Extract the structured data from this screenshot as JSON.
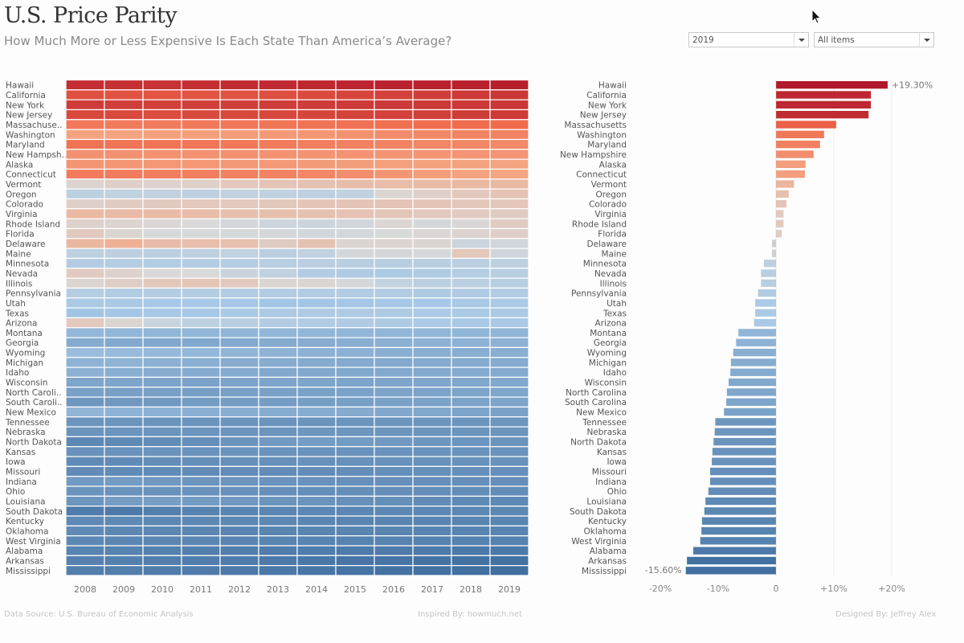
{
  "header": {
    "title": "U.S. Price Parity",
    "subtitle": "How Much More or Less Expensive Is Each State Than America’s Average?"
  },
  "filters": {
    "year": {
      "selected": "2019",
      "icon": "chevron-down-icon"
    },
    "category": {
      "selected": "All items",
      "icon": "chevron-down-icon"
    }
  },
  "footer": {
    "source": "Data Source: U.S. Bureau of Economic Analysis",
    "inspired": "Inspired By: howmuch.net",
    "designed": "Designed By: Jeffrey Alex"
  },
  "colors": {
    "high": "#b2182b",
    "mid_high": "#f4a582",
    "neutral": "#d9d9d9",
    "mid_low": "#a6c8e6",
    "low": "#3d6c9e"
  },
  "chart_data": [
    {
      "type": "heatmap",
      "title": "Regional price parity by state and year",
      "xlabel": "",
      "ylabel": "",
      "x": [
        "2008",
        "2009",
        "2010",
        "2011",
        "2012",
        "2013",
        "2014",
        "2015",
        "2016",
        "2017",
        "2018",
        "2019"
      ],
      "y_labels": [
        "Hawaii",
        "California",
        "New York",
        "New Jersey",
        "Massachuse..",
        "Washington",
        "Maryland",
        "New Hampsh..",
        "Alaska",
        "Connecticut",
        "Vermont",
        "Oregon",
        "Colorado",
        "Virginia",
        "Rhode Island",
        "Florida",
        "Delaware",
        "Maine",
        "Minnesota",
        "Nevada",
        "Illinois",
        "Pennsylvania",
        "Utah",
        "Texas",
        "Arizona",
        "Montana",
        "Georgia",
        "Wyoming",
        "Michigan",
        "Idaho",
        "Wisconsin",
        "North Caroli..",
        "South Caroli..",
        "New Mexico",
        "Tennessee",
        "Nebraska",
        "North Dakota",
        "Kansas",
        "Iowa",
        "Missouri",
        "Indiana",
        "Ohio",
        "Louisiana",
        "South Dakota",
        "Kentucky",
        "Oklahoma",
        "West Virginia",
        "Alabama",
        "Arkansas",
        "Mississippi"
      ],
      "values": [
        [
          17.5,
          17.2,
          17.0,
          17.4,
          17.8,
          18.0,
          18.3,
          18.6,
          18.8,
          18.9,
          19.1,
          19.3
        ],
        [
          13.5,
          13.2,
          12.9,
          13.0,
          13.2,
          13.6,
          14.1,
          14.7,
          15.2,
          15.6,
          16.0,
          16.4
        ],
        [
          15.8,
          15.6,
          15.3,
          15.4,
          15.6,
          15.7,
          15.9,
          16.0,
          16.1,
          16.2,
          16.3,
          16.4
        ],
        [
          14.4,
          14.3,
          14.0,
          14.2,
          14.4,
          14.5,
          14.7,
          15.0,
          15.2,
          15.5,
          15.8,
          16.0
        ],
        [
          9.1,
          8.9,
          8.8,
          9.0,
          9.3,
          9.4,
          9.6,
          9.8,
          10.0,
          10.2,
          10.3,
          10.4
        ],
        [
          5.2,
          5.1,
          5.4,
          5.5,
          5.8,
          6.1,
          6.4,
          6.9,
          7.4,
          7.8,
          8.1,
          8.3
        ],
        [
          9.7,
          9.6,
          9.5,
          9.4,
          9.2,
          8.9,
          8.7,
          8.4,
          8.2,
          7.9,
          7.8,
          7.6
        ],
        [
          6.9,
          6.9,
          6.8,
          6.8,
          6.9,
          6.8,
          6.7,
          6.7,
          6.6,
          6.6,
          6.5,
          6.5
        ],
        [
          6.6,
          6.4,
          6.3,
          6.3,
          6.2,
          6.1,
          5.9,
          5.7,
          5.5,
          5.4,
          5.2,
          5.1
        ],
        [
          8.9,
          8.8,
          8.7,
          8.6,
          8.4,
          8.2,
          7.9,
          7.2,
          6.4,
          5.7,
          5.3,
          5.0
        ],
        [
          0.6,
          0.9,
          0.7,
          1.0,
          1.6,
          2.0,
          2.3,
          2.6,
          2.8,
          3.0,
          3.1,
          3.1
        ],
        [
          -2.2,
          -2.0,
          -1.8,
          -2.1,
          -1.9,
          -2.0,
          -2.1,
          -2.0,
          0.4,
          1.0,
          1.6,
          2.2
        ],
        [
          0.9,
          1.3,
          1.5,
          1.6,
          1.6,
          1.7,
          1.9,
          2.0,
          2.0,
          1.9,
          1.8,
          1.8
        ],
        [
          3.1,
          3.0,
          2.9,
          2.8,
          2.5,
          2.4,
          2.3,
          2.2,
          1.9,
          1.6,
          1.4,
          1.3
        ],
        [
          0.8,
          0.5,
          0.2,
          0.0,
          -0.5,
          -0.9,
          -1.0,
          -0.6,
          0.3,
          -0.3,
          0.1,
          1.3
        ],
        [
          1.5,
          0.4,
          -0.2,
          -0.2,
          -0.3,
          -0.4,
          -0.6,
          -0.4,
          -0.1,
          0.3,
          0.6,
          1.0
        ],
        [
          3.2,
          3.9,
          2.8,
          2.6,
          2.5,
          1.3,
          2.3,
          0.4,
          0.5,
          0.4,
          -1.2,
          -0.7
        ],
        [
          -2.2,
          -2.1,
          -2.3,
          -2.1,
          -2.0,
          -2.3,
          -1.9,
          -0.4,
          -0.4,
          -0.3,
          1.7,
          -0.7
        ],
        [
          -3.0,
          -2.9,
          -3.1,
          -3.0,
          -2.8,
          -2.6,
          -2.5,
          -2.5,
          -2.6,
          -2.6,
          -2.4,
          -2.1
        ],
        [
          1.4,
          0.8,
          0.0,
          0.0,
          -1.3,
          -2.0,
          -3.0,
          -3.3,
          -3.5,
          -3.3,
          -2.9,
          -2.6
        ],
        [
          0.4,
          1.1,
          1.7,
          1.9,
          1.5,
          0.4,
          0.4,
          -0.3,
          -1.7,
          -2.3,
          -2.3,
          -2.6
        ],
        [
          -2.9,
          -3.1,
          -2.9,
          -2.9,
          -3.1,
          -3.0,
          -3.0,
          -3.1,
          -3.1,
          -3.3,
          -3.2,
          -3.1
        ],
        [
          -3.8,
          -3.7,
          -3.9,
          -3.9,
          -4.0,
          -4.3,
          -4.2,
          -4.1,
          -4.0,
          -3.9,
          -3.8,
          -3.6
        ],
        [
          -4.4,
          -4.1,
          -3.9,
          -3.9,
          -3.8,
          -3.5,
          -3.4,
          -3.3,
          -3.4,
          -3.6,
          -3.6,
          -3.6
        ],
        [
          1.6,
          0.4,
          -1.2,
          -2.2,
          -2.6,
          -3.0,
          -3.1,
          -3.2,
          -3.4,
          -3.6,
          -3.7,
          -3.8
        ],
        [
          -6.2,
          -6.3,
          -6.4,
          -6.4,
          -6.5,
          -6.4,
          -6.3,
          -6.3,
          -6.4,
          -6.4,
          -6.5,
          -6.5
        ],
        [
          -7.8,
          -8.0,
          -8.1,
          -8.2,
          -8.0,
          -7.8,
          -7.6,
          -7.4,
          -7.1,
          -7.0,
          -6.9,
          -6.9
        ],
        [
          -5.4,
          -5.7,
          -6.0,
          -6.2,
          -6.5,
          -6.8,
          -7.0,
          -7.0,
          -7.3,
          -7.4,
          -7.4,
          -7.4
        ],
        [
          -6.7,
          -6.8,
          -7.1,
          -7.3,
          -7.6,
          -7.7,
          -7.8,
          -7.9,
          -8.0,
          -7.9,
          -7.8,
          -7.8
        ],
        [
          -7.0,
          -7.3,
          -7.6,
          -7.8,
          -7.9,
          -8.1,
          -8.1,
          -8.2,
          -8.0,
          -8.0,
          -7.9,
          -7.9
        ],
        [
          -8.6,
          -8.6,
          -8.8,
          -8.9,
          -8.8,
          -8.7,
          -8.6,
          -8.7,
          -8.6,
          -8.4,
          -8.3,
          -8.2
        ],
        [
          -9.2,
          -9.3,
          -9.3,
          -9.4,
          -9.3,
          -9.2,
          -9.0,
          -8.9,
          -8.8,
          -8.7,
          -8.6,
          -8.5
        ],
        [
          -10.4,
          -10.2,
          -10.1,
          -9.8,
          -9.8,
          -9.7,
          -9.5,
          -9.3,
          -9.1,
          -8.9,
          -8.8,
          -8.6
        ],
        [
          -6.5,
          -6.9,
          -7.0,
          -7.2,
          -7.4,
          -7.7,
          -7.7,
          -7.8,
          -8.1,
          -8.3,
          -8.7,
          -9.0
        ],
        [
          -10.6,
          -10.7,
          -10.8,
          -10.8,
          -10.8,
          -10.9,
          -10.8,
          -10.7,
          -10.6,
          -10.6,
          -10.6,
          -10.5
        ],
        [
          -10.8,
          -10.7,
          -10.6,
          -10.6,
          -10.7,
          -10.6,
          -10.5,
          -10.5,
          -10.6,
          -10.6,
          -10.6,
          -10.6
        ],
        [
          -12.3,
          -12.1,
          -11.8,
          -11.4,
          -10.8,
          -10.1,
          -9.7,
          -9.8,
          -10.2,
          -10.5,
          -10.7,
          -10.8
        ],
        [
          -11.1,
          -11.0,
          -10.9,
          -10.9,
          -10.8,
          -10.9,
          -11.0,
          -11.0,
          -11.0,
          -11.0,
          -11.0,
          -11.0
        ],
        [
          -12.0,
          -11.9,
          -11.7,
          -11.5,
          -11.3,
          -11.3,
          -11.2,
          -11.2,
          -11.1,
          -11.1,
          -11.1,
          -11.1
        ],
        [
          -11.8,
          -12.0,
          -11.9,
          -11.8,
          -11.8,
          -11.8,
          -11.7,
          -11.6,
          -11.5,
          -11.5,
          -11.4,
          -11.4
        ],
        [
          -9.9,
          -9.8,
          -10.2,
          -10.5,
          -10.6,
          -10.9,
          -11.1,
          -11.2,
          -11.3,
          -11.4,
          -11.4,
          -11.4
        ],
        [
          -10.8,
          -10.9,
          -11.0,
          -11.1,
          -11.2,
          -11.3,
          -11.4,
          -11.5,
          -11.6,
          -11.6,
          -11.7,
          -11.7
        ],
        [
          -10.5,
          -9.6,
          -9.4,
          -9.8,
          -10.2,
          -10.6,
          -10.9,
          -11.3,
          -11.5,
          -11.8,
          -12.0,
          -12.2
        ],
        [
          -13.9,
          -14.2,
          -13.5,
          -13.0,
          -12.8,
          -12.6,
          -12.5,
          -12.5,
          -12.4,
          -12.4,
          -12.4,
          -12.4
        ],
        [
          -12.1,
          -12.2,
          -12.3,
          -12.4,
          -12.5,
          -12.5,
          -12.6,
          -12.6,
          -12.7,
          -12.7,
          -12.8,
          -12.8
        ],
        [
          -12.0,
          -12.3,
          -12.5,
          -12.6,
          -12.7,
          -12.8,
          -12.8,
          -12.8,
          -12.8,
          -12.9,
          -12.9,
          -12.9
        ],
        [
          -12.4,
          -12.5,
          -12.6,
          -12.6,
          -12.7,
          -12.8,
          -12.9,
          -13.0,
          -13.0,
          -13.1,
          -13.1,
          -13.1
        ],
        [
          -12.9,
          -13.1,
          -13.3,
          -13.5,
          -13.6,
          -13.8,
          -13.9,
          -14.0,
          -14.1,
          -14.2,
          -14.3,
          -14.3
        ],
        [
          -13.2,
          -13.4,
          -13.6,
          -13.8,
          -14.0,
          -14.3,
          -14.6,
          -14.8,
          -15.0,
          -15.2,
          -15.3,
          -15.4
        ],
        [
          -13.5,
          -13.6,
          -13.9,
          -14.1,
          -14.3,
          -14.5,
          -14.7,
          -15.0,
          -15.2,
          -15.4,
          -15.5,
          -15.6
        ]
      ],
      "color_range": [
        -16,
        20
      ],
      "legend": "none"
    },
    {
      "type": "bar",
      "orientation": "horizontal",
      "title": "Price parity vs. national average, 2019",
      "xlabel": "",
      "ylabel": "",
      "categories": [
        "Hawaii",
        "California",
        "New York",
        "New Jersey",
        "Massachusetts",
        "Washington",
        "Maryland",
        "New Hampshire",
        "Alaska",
        "Connecticut",
        "Vermont",
        "Oregon",
        "Colorado",
        "Virginia",
        "Rhode Island",
        "Florida",
        "Delaware",
        "Maine",
        "Minnesota",
        "Nevada",
        "Illinois",
        "Pennsylvania",
        "Utah",
        "Texas",
        "Arizona",
        "Montana",
        "Georgia",
        "Wyoming",
        "Michigan",
        "Idaho",
        "Wisconsin",
        "North Carolina",
        "South Carolina",
        "New Mexico",
        "Tennessee",
        "Nebraska",
        "North Dakota",
        "Kansas",
        "Iowa",
        "Missouri",
        "Indiana",
        "Ohio",
        "Louisiana",
        "South Dakota",
        "Kentucky",
        "Oklahoma",
        "West Virginia",
        "Alabama",
        "Arkansas",
        "Mississippi"
      ],
      "values": [
        19.3,
        16.4,
        16.4,
        16.0,
        10.4,
        8.3,
        7.6,
        6.5,
        5.1,
        5.0,
        3.1,
        2.2,
        1.8,
        1.3,
        1.3,
        1.0,
        -0.7,
        -0.7,
        -2.1,
        -2.6,
        -2.6,
        -3.1,
        -3.6,
        -3.6,
        -3.8,
        -6.5,
        -6.9,
        -7.4,
        -7.8,
        -7.9,
        -8.2,
        -8.5,
        -8.6,
        -9.0,
        -10.5,
        -10.6,
        -10.8,
        -11.0,
        -11.1,
        -11.4,
        -11.4,
        -11.7,
        -12.2,
        -12.4,
        -12.8,
        -12.9,
        -13.1,
        -14.3,
        -15.4,
        -15.6
      ],
      "xlim": [
        -20,
        20
      ],
      "x_ticks": [
        "-20%",
        "-10%",
        "0",
        "+10%",
        "+20%"
      ],
      "x_tick_values": [
        -20,
        -10,
        0,
        10,
        20
      ],
      "annotations": [
        {
          "category": "Hawaii",
          "text": "+19.30%"
        },
        {
          "category": "Mississippi",
          "text": "-15.60%"
        }
      ],
      "grid": true
    }
  ]
}
